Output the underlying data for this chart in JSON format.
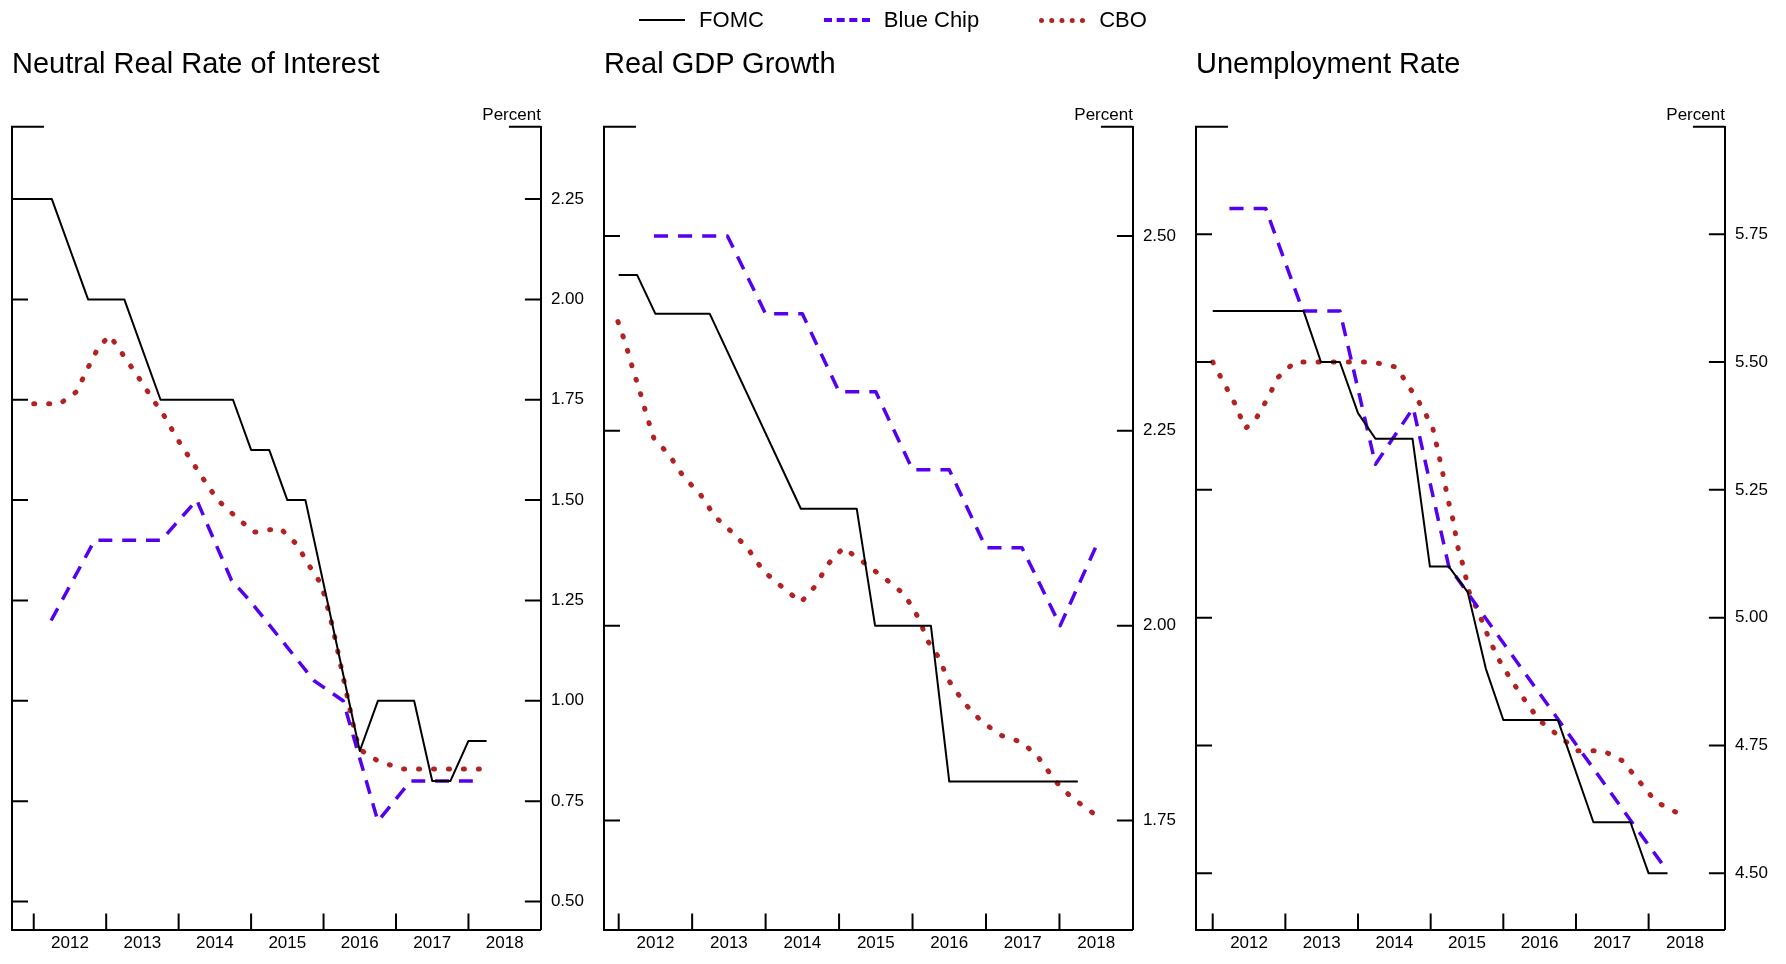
{
  "chart_data": [
    {
      "type": "line",
      "title": "Neutral Real Rate of Interest",
      "ylabel": "Percent",
      "legend": "top",
      "grid": false,
      "marker": "none",
      "xlim": [
        2011.7,
        2019.0
      ],
      "ylim": [
        0.43,
        2.43
      ],
      "xticks": [
        {
          "value": 2012,
          "label": null
        },
        {
          "value": 2012.5,
          "label": "2012"
        },
        {
          "value": 2013,
          "label": null
        },
        {
          "value": 2013.5,
          "label": "2013"
        },
        {
          "value": 2014,
          "label": null
        },
        {
          "value": 2014.5,
          "label": "2014"
        },
        {
          "value": 2015,
          "label": null
        },
        {
          "value": 2015.5,
          "label": "2015"
        },
        {
          "value": 2016,
          "label": null
        },
        {
          "value": 2016.5,
          "label": "2016"
        },
        {
          "value": 2017,
          "label": null
        },
        {
          "value": 2017.5,
          "label": "2017"
        },
        {
          "value": 2018,
          "label": null
        },
        {
          "value": 2018.5,
          "label": "2018"
        }
      ],
      "yticks": [
        {
          "value": 0.5,
          "label": "0.50"
        },
        {
          "value": 0.75,
          "label": "0.75"
        },
        {
          "value": 1,
          "label": "1.00"
        },
        {
          "value": 1.25,
          "label": "1.25"
        },
        {
          "value": 1.5,
          "label": "1.50"
        },
        {
          "value": 1.75,
          "label": "1.75"
        },
        {
          "value": 2,
          "label": "2.00"
        },
        {
          "value": 2.25,
          "label": "2.25"
        }
      ],
      "series": [
        {
          "name": "FOMC",
          "color": "#000000",
          "line_style": "solid",
          "x": [
            2011.75,
            2012.25,
            2012.75,
            2013.25,
            2013.75,
            2014.75,
            2015.0,
            2015.25,
            2015.5,
            2015.75,
            2016.5,
            2016.75,
            2017.25,
            2017.5,
            2017.75,
            2018.0,
            2018.25
          ],
          "values": [
            2.25,
            2.25,
            2.0,
            2.0,
            1.75,
            1.75,
            1.625,
            1.625,
            1.5,
            1.5,
            0.875,
            1.0,
            1.0,
            0.8,
            0.8,
            0.9,
            0.9
          ]
        },
        {
          "name": "Blue Chip",
          "color": "#5500ee",
          "line_style": "dashed",
          "x": [
            2012.24,
            2012.84,
            2013.76,
            2014.25,
            2014.73,
            2014.98,
            2015.87,
            2016.27,
            2016.75,
            2017.2,
            2018.06
          ],
          "values": [
            1.2,
            1.4,
            1.4,
            1.5,
            1.3,
            1.25,
            1.05,
            1.0,
            0.7,
            0.8,
            0.8
          ]
        },
        {
          "name": "CBO",
          "color": "#b22222",
          "line_style": "dotted",
          "x": [
            2012.0,
            2012.36,
            2012.59,
            2012.75,
            2012.89,
            2013.05,
            2013.24,
            2013.43,
            2013.61,
            2013.8,
            2013.99,
            2014.17,
            2014.35,
            2014.54,
            2014.78,
            2015.04,
            2015.4,
            2015.63,
            2015.79,
            2015.97,
            2016.06,
            2016.13,
            2016.2,
            2016.27,
            2016.34,
            2016.41,
            2016.49,
            2016.75,
            2017.09,
            2017.44,
            2017.8,
            2018.15
          ],
          "values": [
            1.74,
            1.74,
            1.77,
            1.83,
            1.88,
            1.91,
            1.86,
            1.81,
            1.76,
            1.71,
            1.65,
            1.6,
            1.55,
            1.5,
            1.46,
            1.42,
            1.43,
            1.39,
            1.34,
            1.29,
            1.23,
            1.18,
            1.12,
            1.06,
            1.0,
            0.94,
            0.88,
            0.85,
            0.83,
            0.83,
            0.83,
            0.83
          ]
        }
      ]
    },
    {
      "type": "line",
      "title": "Real GDP Growth",
      "ylabel": "Percent",
      "grid": false,
      "marker": "none",
      "xlim": [
        2011.8,
        2019.0
      ],
      "ylim": [
        1.61,
        2.64
      ],
      "xticks": [
        {
          "value": 2012,
          "label": null
        },
        {
          "value": 2012.5,
          "label": "2012"
        },
        {
          "value": 2013,
          "label": null
        },
        {
          "value": 2013.5,
          "label": "2013"
        },
        {
          "value": 2014,
          "label": null
        },
        {
          "value": 2014.5,
          "label": "2014"
        },
        {
          "value": 2015,
          "label": null
        },
        {
          "value": 2015.5,
          "label": "2015"
        },
        {
          "value": 2016,
          "label": null
        },
        {
          "value": 2016.5,
          "label": "2016"
        },
        {
          "value": 2017,
          "label": null
        },
        {
          "value": 2017.5,
          "label": "2017"
        },
        {
          "value": 2018,
          "label": null
        },
        {
          "value": 2018.5,
          "label": "2018"
        }
      ],
      "yticks": [
        {
          "value": 1.75,
          "label": "1.75"
        },
        {
          "value": 2,
          "label": "2.00"
        },
        {
          "value": 2.25,
          "label": "2.25"
        },
        {
          "value": 2.5,
          "label": "2.50"
        }
      ],
      "series": [
        {
          "color": "#000000",
          "line_style": "solid",
          "x": [
            2012.0,
            2012.25,
            2012.5,
            2013.24,
            2014.48,
            2015.24,
            2015.49,
            2016.25,
            2016.5,
            2018.25
          ],
          "values": [
            2.45,
            2.45,
            2.4,
            2.4,
            2.15,
            2.15,
            2.0,
            2.0,
            1.8,
            1.8
          ]
        },
        {
          "color": "#5500ee",
          "line_style": "dashed",
          "x": [
            2012.48,
            2013.48,
            2014.0,
            2014.5,
            2015.0,
            2015.5,
            2016.0,
            2016.5,
            2017.0,
            2017.49,
            2018.01,
            2018.49
          ],
          "values": [
            2.5,
            2.5,
            2.4,
            2.4,
            2.3,
            2.3,
            2.2,
            2.2,
            2.1,
            2.1,
            2.0,
            2.1
          ]
        },
        {
          "color": "#b22222",
          "line_style": "dotted",
          "x": [
            2011.99,
            2012.1,
            2012.19,
            2012.29,
            2012.38,
            2012.48,
            2012.68,
            2012.89,
            2013.1,
            2013.31,
            2013.54,
            2013.75,
            2013.97,
            2014.22,
            2014.48,
            2014.67,
            2014.86,
            2015.06,
            2015.35,
            2015.63,
            2015.89,
            2016.08,
            2016.21,
            2016.35,
            2016.49,
            2016.71,
            2016.91,
            2017.18,
            2017.5,
            2017.72,
            2017.95,
            2018.16,
            2018.45
          ],
          "values": [
            2.39,
            2.36,
            2.33,
            2.3,
            2.27,
            2.24,
            2.22,
            2.19,
            2.17,
            2.14,
            2.12,
            2.1,
            2.07,
            2.05,
            2.03,
            2.05,
            2.08,
            2.1,
            2.08,
            2.06,
            2.04,
            2.01,
            1.98,
            1.96,
            1.93,
            1.9,
            1.88,
            1.86,
            1.85,
            1.83,
            1.8,
            1.78,
            1.76
          ]
        }
      ]
    },
    {
      "type": "line",
      "title": "Unemployment Rate",
      "ylabel": "Percent",
      "grid": false,
      "marker": "none",
      "xlim": [
        2011.77,
        2019.05
      ],
      "ylim": [
        4.39,
        5.96
      ],
      "xticks": [
        {
          "value": 2012,
          "label": null
        },
        {
          "value": 2012.5,
          "label": "2012"
        },
        {
          "value": 2013,
          "label": null
        },
        {
          "value": 2013.5,
          "label": "2013"
        },
        {
          "value": 2014,
          "label": null
        },
        {
          "value": 2014.5,
          "label": "2014"
        },
        {
          "value": 2015,
          "label": null
        },
        {
          "value": 2015.5,
          "label": "2015"
        },
        {
          "value": 2016,
          "label": null
        },
        {
          "value": 2016.5,
          "label": "2016"
        },
        {
          "value": 2017,
          "label": null
        },
        {
          "value": 2017.5,
          "label": "2017"
        },
        {
          "value": 2018,
          "label": null
        },
        {
          "value": 2018.5,
          "label": "2018"
        }
      ],
      "yticks": [
        {
          "value": 4.5,
          "label": "4.50"
        },
        {
          "value": 4.75,
          "label": "4.75"
        },
        {
          "value": 5,
          "label": "5.00"
        },
        {
          "value": 5.25,
          "label": "5.25"
        },
        {
          "value": 5.5,
          "label": "5.50"
        },
        {
          "value": 5.75,
          "label": "5.75"
        }
      ],
      "series": [
        {
          "color": "#000000",
          "line_style": "solid",
          "x": [
            2012.0,
            2013.25,
            2013.49,
            2013.75,
            2014.0,
            2014.24,
            2014.75,
            2014.99,
            2015.25,
            2015.51,
            2015.76,
            2016.0,
            2016.75,
            2017.24,
            2017.75,
            2018.0,
            2018.26
          ],
          "values": [
            5.6,
            5.6,
            5.5,
            5.5,
            5.4,
            5.35,
            5.35,
            5.1,
            5.1,
            5.05,
            4.9,
            4.8,
            4.8,
            4.6,
            4.6,
            4.5,
            4.5
          ]
        },
        {
          "color": "#5500ee",
          "line_style": "dashed",
          "x": [
            2012.23,
            2012.73,
            2013.24,
            2013.75,
            2014.24,
            2014.76,
            2015.25,
            2015.7,
            2016.76,
            2017.77,
            2018.18
          ],
          "values": [
            5.8,
            5.8,
            5.6,
            5.6,
            5.3,
            5.41,
            5.1,
            5.01,
            4.8,
            4.6,
            4.52
          ]
        },
        {
          "color": "#b22222",
          "line_style": "dotted",
          "x": [
            2012.0,
            2012.15,
            2012.3,
            2012.45,
            2012.6,
            2012.76,
            2012.9,
            2013.13,
            2013.49,
            2013.84,
            2014.2,
            2014.53,
            2014.71,
            2014.89,
            2015.03,
            2015.11,
            2015.17,
            2015.24,
            2015.31,
            2015.37,
            2015.45,
            2015.53,
            2015.66,
            2015.8,
            2015.93,
            2016.1,
            2016.29,
            2016.49,
            2016.75,
            2017.02,
            2017.37,
            2017.64,
            2017.87,
            2018.1,
            2018.37
          ],
          "values": [
            5.5,
            5.46,
            5.42,
            5.37,
            5.39,
            5.43,
            5.47,
            5.5,
            5.5,
            5.5,
            5.5,
            5.49,
            5.45,
            5.41,
            5.37,
            5.32,
            5.28,
            5.23,
            5.19,
            5.14,
            5.1,
            5.05,
            5.01,
            4.96,
            4.92,
            4.88,
            4.84,
            4.8,
            4.77,
            4.74,
            4.74,
            4.72,
            4.68,
            4.64,
            4.62
          ]
        }
      ]
    }
  ]
}
